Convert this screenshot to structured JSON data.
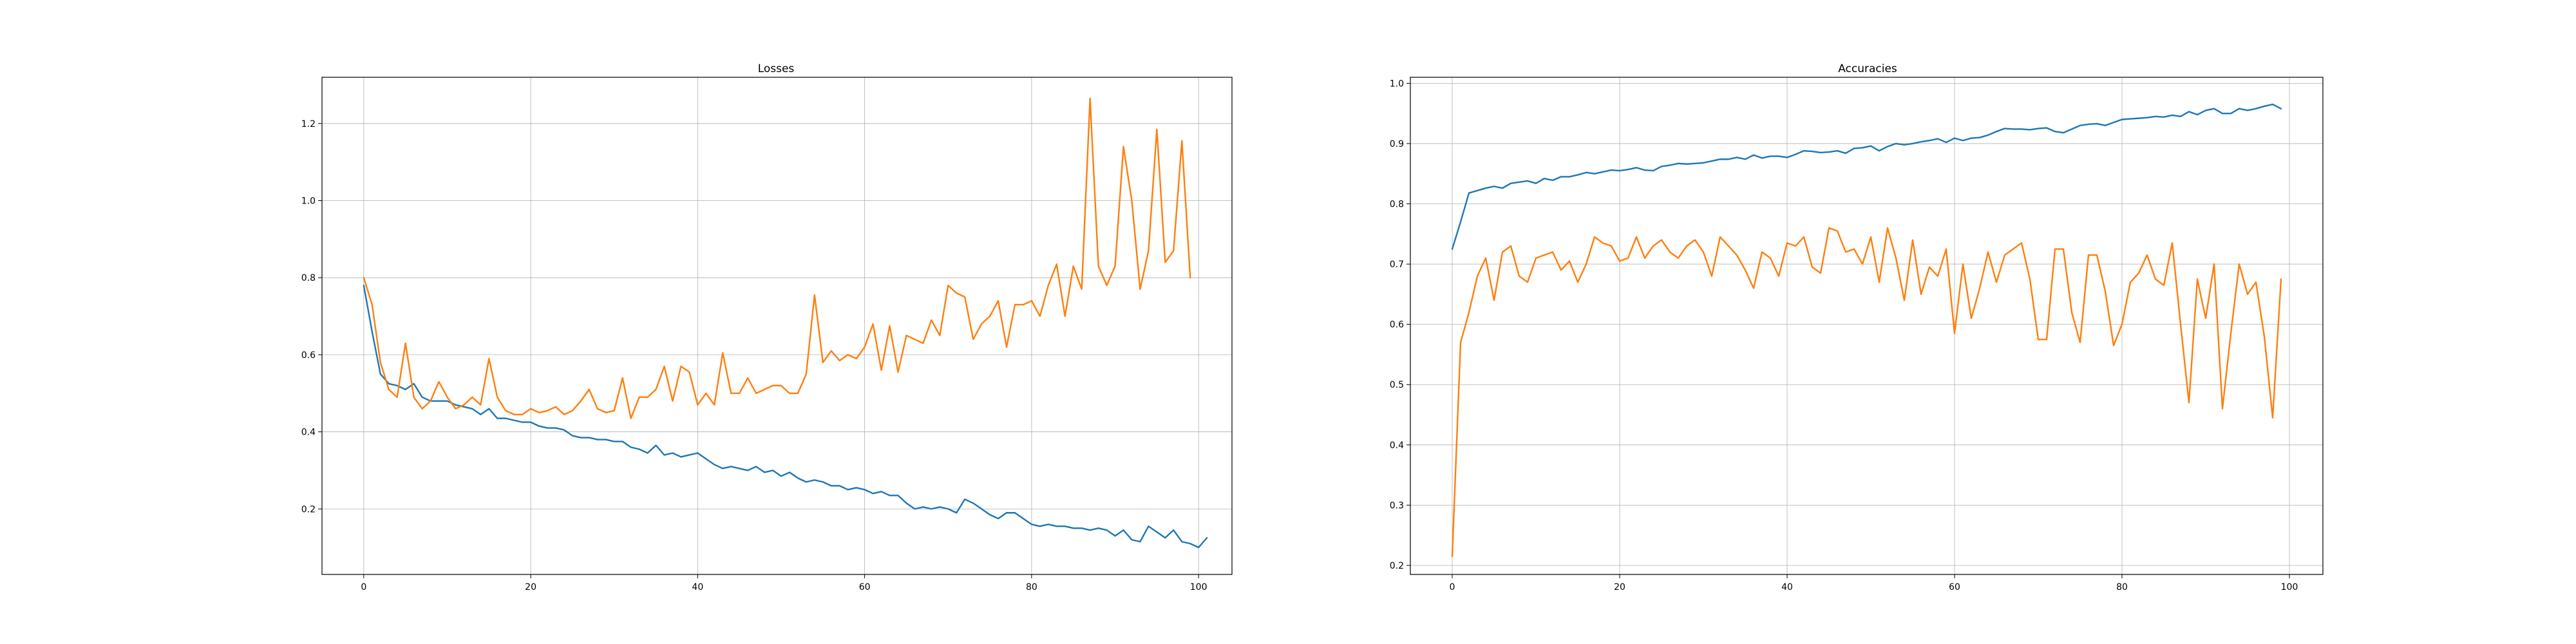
{
  "colors": {
    "series_1": "#1f77b4",
    "series_2": "#ff7f0e",
    "grid": "#b0b0b0"
  },
  "chart_data": [
    {
      "type": "line",
      "title": "Losses",
      "xlabel": "",
      "ylabel": "",
      "grid": true,
      "xlim": [
        -5,
        104
      ],
      "ylim": [
        0.03,
        1.32
      ],
      "xticks": [
        0,
        20,
        40,
        60,
        80,
        100
      ],
      "yticks": [
        0.2,
        0.4,
        0.6,
        0.8,
        1.0,
        1.2
      ],
      "ytick_labels": [
        "0.2",
        "0.4",
        "0.6",
        "0.8",
        "1.0",
        "1.2"
      ],
      "series": [
        {
          "color": "#1f77b4",
          "values": [
            0.78,
            0.66,
            0.55,
            0.525,
            0.52,
            0.51,
            0.525,
            0.49,
            0.48,
            0.48,
            0.48,
            0.47,
            0.465,
            0.46,
            0.445,
            0.46,
            0.435,
            0.435,
            0.43,
            0.425,
            0.425,
            0.415,
            0.41,
            0.41,
            0.405,
            0.39,
            0.385,
            0.385,
            0.38,
            0.38,
            0.375,
            0.375,
            0.36,
            0.355,
            0.345,
            0.365,
            0.34,
            0.345,
            0.335,
            0.34,
            0.345,
            0.33,
            0.315,
            0.305,
            0.31,
            0.305,
            0.3,
            0.31,
            0.295,
            0.3,
            0.285,
            0.295,
            0.28,
            0.27,
            0.275,
            0.27,
            0.26,
            0.26,
            0.25,
            0.255,
            0.25,
            0.24,
            0.245,
            0.235,
            0.235,
            0.215,
            0.2,
            0.205,
            0.2,
            0.205,
            0.2,
            0.19,
            0.225,
            0.215,
            0.2,
            0.185,
            0.175,
            0.19,
            0.19,
            0.175,
            0.16,
            0.155,
            0.16,
            0.155,
            0.155,
            0.15,
            0.15,
            0.145,
            0.15,
            0.145,
            0.13,
            0.145,
            0.12,
            0.115,
            0.155,
            0.14,
            0.125,
            0.145,
            0.115,
            0.11,
            0.1,
            0.125
          ]
        },
        {
          "color": "#ff7f0e",
          "values": [
            0.8,
            0.73,
            0.58,
            0.51,
            0.49,
            0.63,
            0.49,
            0.46,
            0.48,
            0.53,
            0.49,
            0.46,
            0.47,
            0.49,
            0.47,
            0.59,
            0.49,
            0.455,
            0.445,
            0.445,
            0.46,
            0.45,
            0.455,
            0.465,
            0.445,
            0.455,
            0.48,
            0.51,
            0.46,
            0.45,
            0.455,
            0.54,
            0.435,
            0.49,
            0.49,
            0.51,
            0.57,
            0.48,
            0.57,
            0.555,
            0.47,
            0.5,
            0.47,
            0.605,
            0.5,
            0.5,
            0.54,
            0.5,
            0.51,
            0.52,
            0.52,
            0.5,
            0.5,
            0.55,
            0.755,
            0.58,
            0.61,
            0.585,
            0.6,
            0.59,
            0.62,
            0.68,
            0.56,
            0.675,
            0.555,
            0.65,
            0.64,
            0.63,
            0.69,
            0.65,
            0.78,
            0.76,
            0.75,
            0.64,
            0.68,
            0.7,
            0.74,
            0.62,
            0.73,
            0.73,
            0.74,
            0.7,
            0.78,
            0.835,
            0.7,
            0.83,
            0.77,
            1.265,
            0.83,
            0.78,
            0.83,
            1.14,
            1.0,
            0.77,
            0.87,
            1.185,
            0.84,
            0.87,
            1.155,
            0.8
          ]
        }
      ]
    },
    {
      "type": "line",
      "title": "Accuracies",
      "xlabel": "",
      "ylabel": "",
      "grid": true,
      "xlim": [
        -5,
        104
      ],
      "ylim": [
        0.185,
        1.01
      ],
      "xticks": [
        0,
        20,
        40,
        60,
        80,
        100
      ],
      "yticks": [
        0.2,
        0.3,
        0.4,
        0.5,
        0.6,
        0.7,
        0.8,
        0.9,
        1.0
      ],
      "ytick_labels": [
        "0.2",
        "0.3",
        "0.4",
        "0.5",
        "0.6",
        "0.7",
        "0.8",
        "0.9",
        "1.0"
      ],
      "series": [
        {
          "color": "#1f77b4",
          "values": [
            0.725,
            0.77,
            0.818,
            0.822,
            0.826,
            0.829,
            0.826,
            0.834,
            0.836,
            0.838,
            0.834,
            0.842,
            0.839,
            0.845,
            0.845,
            0.848,
            0.852,
            0.85,
            0.853,
            0.856,
            0.855,
            0.857,
            0.86,
            0.856,
            0.855,
            0.862,
            0.864,
            0.867,
            0.866,
            0.867,
            0.868,
            0.871,
            0.874,
            0.874,
            0.877,
            0.874,
            0.881,
            0.876,
            0.879,
            0.879,
            0.877,
            0.882,
            0.888,
            0.887,
            0.885,
            0.886,
            0.888,
            0.884,
            0.892,
            0.893,
            0.896,
            0.888,
            0.895,
            0.9,
            0.898,
            0.9,
            0.903,
            0.905,
            0.908,
            0.902,
            0.909,
            0.905,
            0.909,
            0.91,
            0.914,
            0.92,
            0.925,
            0.924,
            0.924,
            0.923,
            0.925,
            0.926,
            0.92,
            0.918,
            0.924,
            0.93,
            0.932,
            0.933,
            0.93,
            0.935,
            0.94,
            0.941,
            0.942,
            0.943,
            0.945,
            0.944,
            0.947,
            0.945,
            0.953,
            0.948,
            0.955,
            0.958,
            0.95,
            0.95,
            0.958,
            0.955,
            0.958,
            0.962,
            0.965,
            0.958
          ]
        },
        {
          "color": "#ff7f0e",
          "values": [
            0.215,
            0.57,
            0.62,
            0.68,
            0.71,
            0.64,
            0.72,
            0.73,
            0.68,
            0.67,
            0.71,
            0.715,
            0.72,
            0.69,
            0.705,
            0.67,
            0.7,
            0.745,
            0.735,
            0.73,
            0.705,
            0.71,
            0.745,
            0.71,
            0.73,
            0.74,
            0.72,
            0.71,
            0.73,
            0.74,
            0.72,
            0.68,
            0.745,
            0.73,
            0.715,
            0.69,
            0.66,
            0.72,
            0.71,
            0.68,
            0.735,
            0.73,
            0.745,
            0.695,
            0.685,
            0.76,
            0.755,
            0.72,
            0.725,
            0.7,
            0.745,
            0.67,
            0.76,
            0.71,
            0.64,
            0.74,
            0.65,
            0.695,
            0.68,
            0.725,
            0.585,
            0.7,
            0.61,
            0.66,
            0.72,
            0.67,
            0.715,
            0.725,
            0.735,
            0.675,
            0.575,
            0.575,
            0.725,
            0.725,
            0.62,
            0.57,
            0.715,
            0.715,
            0.655,
            0.565,
            0.6,
            0.67,
            0.685,
            0.715,
            0.675,
            0.665,
            0.735,
            0.6,
            0.47,
            0.675,
            0.61,
            0.7,
            0.46,
            0.585,
            0.7,
            0.65,
            0.67,
            0.58,
            0.445,
            0.675
          ]
        }
      ]
    }
  ]
}
